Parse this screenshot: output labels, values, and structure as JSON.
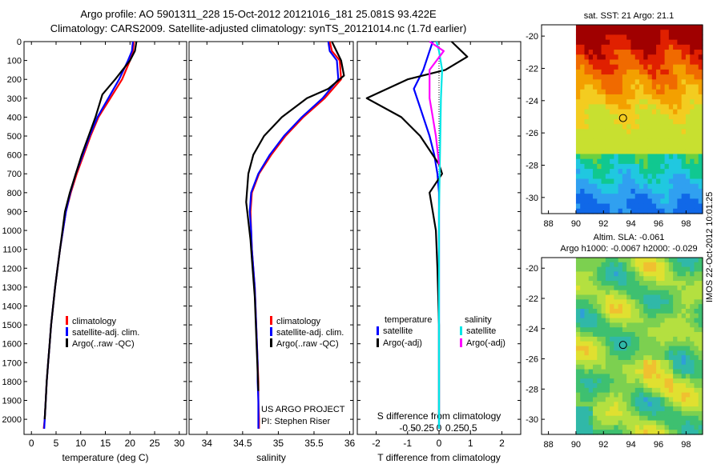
{
  "header": {
    "title_line1": "Argo profile: AO 5901311_228 15-Oct-2012 20121016_181 25.081S 93.422E",
    "title_line2": "Climatology: CARS2009. Satellite-adjusted climatology: synTS_20121014.nc (1.7d earlier)"
  },
  "credits": {
    "project": "US ARGO PROJECT",
    "pi": "PI: Stephen Riser",
    "stamp": "IMOS 22-Oct-2012 10:01:25"
  },
  "chart_data": [
    {
      "type": "line",
      "id": "temperature",
      "xlabel": "temperature (deg C)",
      "ylabel": "",
      "xlim": [
        -1.5,
        31.5
      ],
      "ylim": [
        2080,
        0
      ],
      "xticks": [
        0,
        5,
        10,
        15,
        20,
        25,
        30
      ],
      "xtick_labels": [
        "0",
        "5",
        "10",
        "15",
        "20",
        "25",
        "30"
      ],
      "yticks": [
        0,
        100,
        200,
        300,
        400,
        500,
        600,
        700,
        800,
        900,
        1000,
        1100,
        1200,
        1300,
        1400,
        1500,
        1600,
        1700,
        1800,
        1900,
        2000
      ],
      "ytick_labels": [
        "0",
        "100",
        "200",
        "300",
        "400",
        "500",
        "600",
        "700",
        "800",
        "900",
        "1000",
        "1100",
        "1200",
        "1300",
        "1400",
        "1500",
        "1600",
        "1700",
        "1800",
        "1900",
        "2000"
      ],
      "legend": [
        "climatology",
        "satellite-adj. clim.",
        "Argo(..raw -QC)"
      ],
      "legend_colors": [
        "#ff0000",
        "#0000ff",
        "#000000"
      ],
      "series": [
        {
          "name": "climatology",
          "color": "#ff0000",
          "x": [
            20.8,
            20.6,
            20.0,
            18.4,
            16.0,
            13.6,
            12.0,
            10.6,
            9.2,
            8.0,
            7.0,
            6.4,
            5.8,
            5.3,
            4.8,
            4.4,
            4.0,
            3.7,
            3.4,
            3.1,
            2.9,
            2.7,
            2.5
          ],
          "y": [
            0,
            50,
            100,
            200,
            300,
            400,
            500,
            600,
            700,
            800,
            900,
            1000,
            1100,
            1200,
            1300,
            1400,
            1500,
            1600,
            1700,
            1800,
            1900,
            2000,
            2050
          ]
        },
        {
          "name": "satellite-adj. clim.",
          "color": "#0000ff",
          "x": [
            20.6,
            20.4,
            19.6,
            17.8,
            15.6,
            13.4,
            11.8,
            10.4,
            9.0,
            7.9,
            7.0,
            6.4,
            5.8,
            5.3,
            4.8,
            4.4,
            4.0,
            3.7,
            3.4,
            3.1,
            2.9,
            2.7,
            2.6
          ],
          "y": [
            0,
            50,
            100,
            200,
            300,
            400,
            500,
            600,
            700,
            800,
            900,
            1000,
            1100,
            1200,
            1300,
            1400,
            1500,
            1600,
            1700,
            1800,
            1900,
            2000,
            2050
          ]
        },
        {
          "name": "Argo(..raw -QC)",
          "color": "#000000",
          "x": [
            21.3,
            21.0,
            20.0,
            17.0,
            14.4,
            13.0,
            11.6,
            10.2,
            9.0,
            7.8,
            6.8,
            6.3,
            5.8,
            5.3,
            4.8,
            4.4,
            4.0,
            3.7,
            3.4,
            3.1,
            2.9,
            2.7
          ],
          "y": [
            0,
            50,
            100,
            200,
            280,
            400,
            500,
            600,
            700,
            800,
            900,
            1000,
            1100,
            1200,
            1300,
            1400,
            1500,
            1600,
            1700,
            1800,
            1900,
            2000
          ]
        }
      ]
    },
    {
      "type": "line",
      "id": "salinity",
      "xlabel": "salinity",
      "ylabel": "",
      "xlim": [
        33.75,
        36.05
      ],
      "ylim": [
        2080,
        0
      ],
      "xticks": [
        34,
        34.5,
        35,
        35.5,
        36
      ],
      "xtick_labels": [
        "34",
        "34.5",
        "35",
        "35.5",
        "36"
      ],
      "legend": [
        "climatology",
        "satellite-adj. clim.",
        "Argo(..raw -QC)"
      ],
      "legend_colors": [
        "#ff0000",
        "#0000ff",
        "#000000"
      ],
      "series": [
        {
          "name": "climatology",
          "color": "#ff0000",
          "x": [
            35.72,
            35.75,
            35.86,
            35.88,
            35.65,
            35.35,
            35.1,
            34.9,
            34.73,
            34.63,
            34.61,
            34.62,
            34.63,
            34.65,
            34.67,
            34.68,
            34.69,
            34.7,
            34.71,
            34.72,
            34.72,
            34.73,
            34.73
          ],
          "y": [
            0,
            50,
            100,
            200,
            300,
            400,
            500,
            600,
            700,
            800,
            900,
            1000,
            1100,
            1200,
            1300,
            1400,
            1500,
            1600,
            1700,
            1800,
            1900,
            2000,
            2050
          ]
        },
        {
          "name": "satellite-adj. clim.",
          "color": "#0000ff",
          "x": [
            35.7,
            35.72,
            35.82,
            35.84,
            35.62,
            35.33,
            35.08,
            34.88,
            34.72,
            34.62,
            34.6,
            34.62,
            34.63,
            34.65,
            34.67,
            34.68,
            34.69,
            34.7,
            34.71,
            34.71,
            34.72,
            34.72,
            34.72
          ],
          "y": [
            0,
            50,
            100,
            200,
            300,
            400,
            500,
            600,
            700,
            800,
            900,
            1000,
            1100,
            1200,
            1300,
            1400,
            1500,
            1600,
            1700,
            1800,
            1900,
            2000,
            2050
          ]
        },
        {
          "name": "Argo(..raw -QC)",
          "color": "#000000",
          "x": [
            35.75,
            35.88,
            35.92,
            35.7,
            35.4,
            35.05,
            34.8,
            34.65,
            34.58,
            34.55,
            34.58,
            34.61,
            34.63,
            34.65,
            34.67,
            34.68,
            34.69,
            34.7,
            34.71,
            34.72
          ],
          "y": [
            0,
            100,
            180,
            250,
            300,
            400,
            500,
            600,
            700,
            850,
            950,
            1050,
            1150,
            1250,
            1350,
            1450,
            1550,
            1650,
            1750,
            1850
          ]
        }
      ]
    },
    {
      "type": "line",
      "id": "differences",
      "xlabel": "T difference from climatology",
      "xlabel_top": "S difference from climatology",
      "xlim": [
        -2.6,
        2.6
      ],
      "ylim": [
        2080,
        0
      ],
      "xticks": [
        -2,
        -1,
        0,
        1,
        2
      ],
      "xtick_labels": [
        "-2",
        "-1",
        "0",
        "1",
        "2"
      ],
      "s_xtick_labels": [
        "-0.5",
        "-0.25",
        "0",
        "0.25",
        "0.5"
      ],
      "s_scale": 4,
      "legend_groups": [
        {
          "title": "temperature",
          "entries": [
            "satellite",
            "Argo(-adj)"
          ],
          "colors": [
            "#0000ff",
            "#000000"
          ]
        },
        {
          "title": "salinity",
          "entries": [
            "satellite",
            "Argo(-adj)"
          ],
          "colors": [
            "#00e6e6",
            "#ff00ff"
          ]
        }
      ],
      "series": [
        {
          "name": "T satellite",
          "color": "#0000ff",
          "x": [
            -0.2,
            -0.3,
            -0.5,
            -0.8,
            -0.6,
            -0.3,
            -0.15,
            -0.05,
            0.0,
            0.0,
            0.0,
            0.0,
            0.0,
            0.0
          ],
          "y": [
            0,
            50,
            150,
            250,
            350,
            500,
            600,
            700,
            800,
            900,
            1100,
            1400,
            1700,
            2050
          ]
        },
        {
          "name": "T Argo(-adj)",
          "color": "#000000",
          "x": [
            0.4,
            0.9,
            0.2,
            -1.0,
            -2.3,
            -1.2,
            -0.6,
            0.0,
            0.1,
            -0.3,
            -0.2,
            -0.1,
            -0.05,
            0.0,
            0.0
          ],
          "y": [
            0,
            80,
            150,
            200,
            300,
            400,
            500,
            650,
            700,
            800,
            900,
            1000,
            1200,
            1500,
            2000
          ]
        },
        {
          "name": "S satellite",
          "color": "#00e6e6",
          "x": [
            -0.08,
            0.0,
            0.1,
            0.06,
            0.04,
            0.02,
            0.0,
            0.0,
            0.0
          ],
          "y": [
            0,
            50,
            150,
            300,
            500,
            700,
            900,
            1300,
            2050
          ]
        },
        {
          "name": "S Argo(-adj)",
          "color": "#ff00ff",
          "x": [
            -0.3,
            0.15,
            -0.3,
            -0.3,
            -0.2,
            -0.1,
            0.0
          ],
          "y": [
            0,
            50,
            150,
            300,
            400,
            500,
            650
          ]
        }
      ]
    },
    {
      "type": "heatmap",
      "id": "sst-map",
      "title": "sat. SST: 21 Argo: 21.1",
      "xlim": [
        87.5,
        99.2
      ],
      "ylim": [
        -31,
        -19.3
      ],
      "xticks": [
        88,
        90,
        92,
        94,
        96,
        98
      ],
      "yticks": [
        -30,
        -28,
        -26,
        -24,
        -22,
        -20
      ],
      "xtick_labels": [
        "88",
        "90",
        "92",
        "94",
        "96",
        "98"
      ],
      "ytick_labels": [
        "-30",
        "-28",
        "-26",
        "-24",
        "-22",
        "-20"
      ],
      "data_xrange": [
        90,
        99.2
      ],
      "float_position": [
        93.42,
        -25.08
      ],
      "colormap": [
        "#a00000",
        "#e02000",
        "#f06a00",
        "#f3a000",
        "#f3cc20",
        "#c8e030",
        "#6cd040",
        "#10c890",
        "#20c8e0",
        "#30a0f0",
        "#1068e8"
      ]
    },
    {
      "type": "heatmap",
      "id": "sla-map",
      "title": "Altim. SLA: -0.061",
      "subtitle": "Argo h1000: -0.0067 h2000: -0.029",
      "xlim": [
        87.5,
        99.2
      ],
      "ylim": [
        -31,
        -19.3
      ],
      "xticks": [
        88,
        90,
        92,
        94,
        96,
        98
      ],
      "yticks": [
        -30,
        -28,
        -26,
        -24,
        -22,
        -20
      ],
      "xtick_labels": [
        "88",
        "90",
        "92",
        "94",
        "96",
        "98"
      ],
      "ytick_labels": [
        "-30",
        "-28",
        "-26",
        "-24",
        "-22",
        "-20"
      ],
      "data_xrange": [
        90,
        99.2
      ],
      "float_position": [
        93.42,
        -25.08
      ],
      "colormap": [
        "#2f9fd8",
        "#30b8a8",
        "#3ec070",
        "#7cd050",
        "#b4e040",
        "#e0e030",
        "#f0c030"
      ]
    }
  ]
}
